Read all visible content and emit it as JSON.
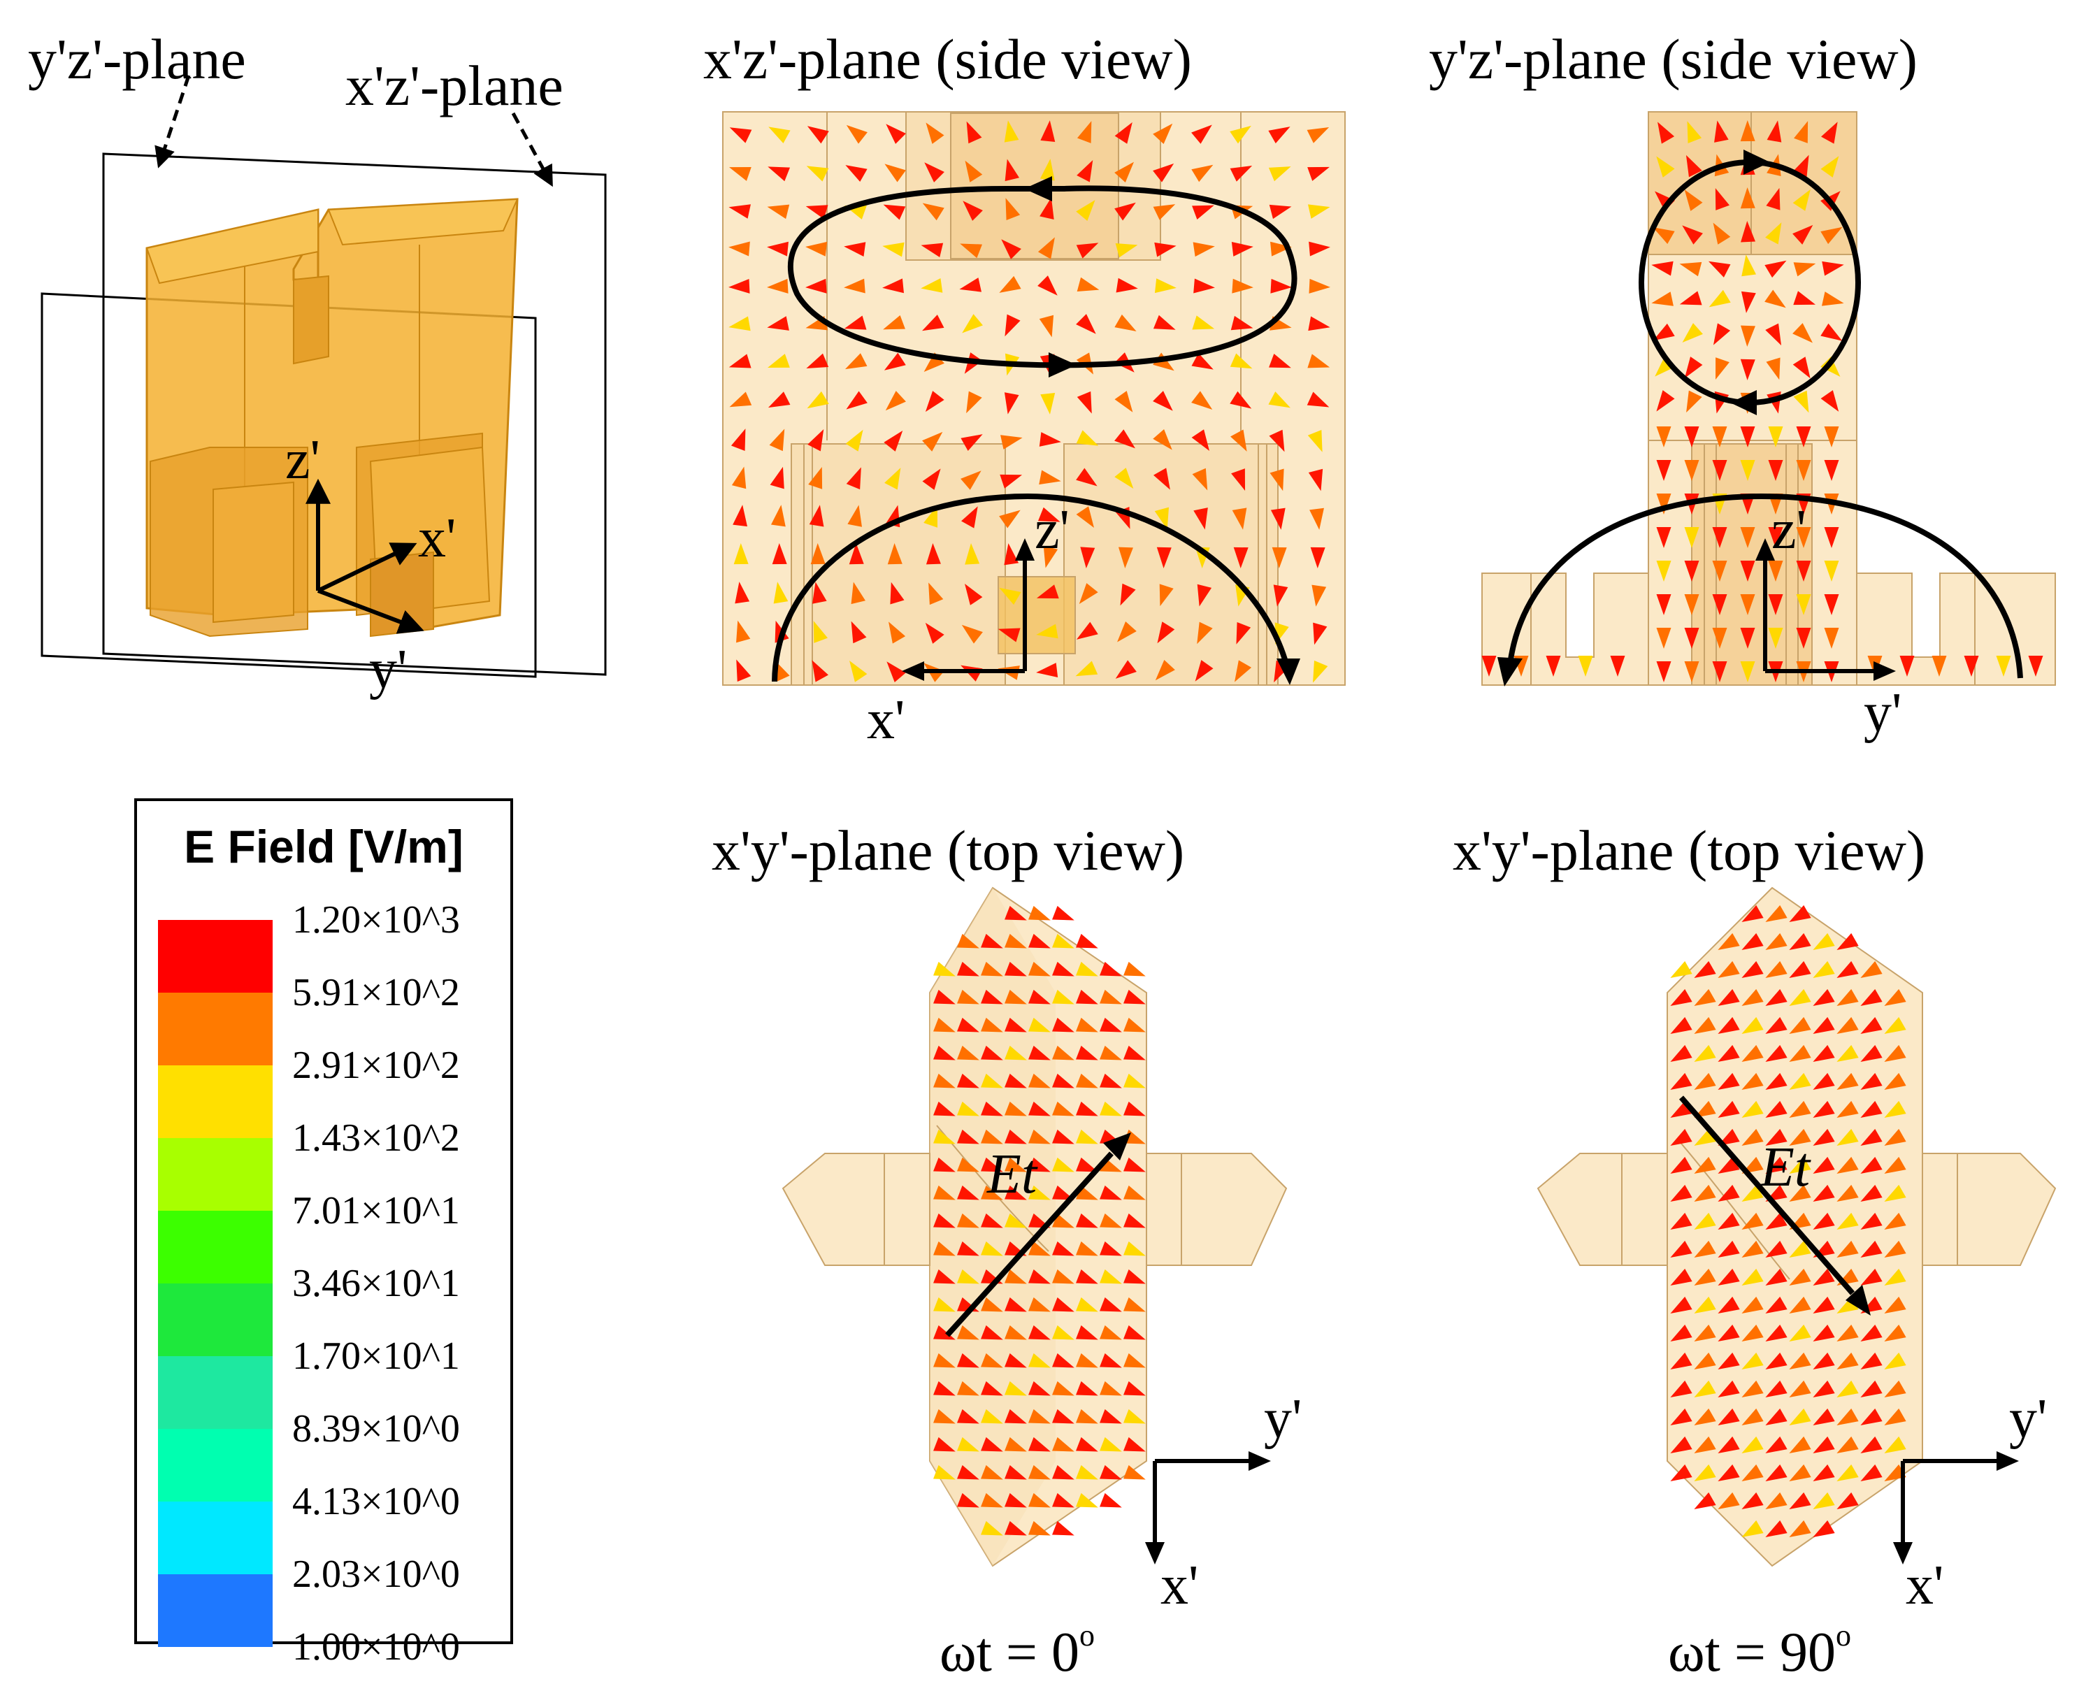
{
  "titles": {
    "iso_yz_plane": "y'z'-plane",
    "iso_xz_plane": "x'z'-plane",
    "xz_side": "x'z'-plane (side view)",
    "yz_side": "y'z'-plane (side view)",
    "xy_top_0": "x'y'-plane (top view)",
    "xy_top_90": "x'y'-plane (top view)"
  },
  "axes": {
    "iso": {
      "z": "z'",
      "x": "x'",
      "y": "y'"
    },
    "xz_side": {
      "z": "z'",
      "x": "x'"
    },
    "yz_side": {
      "z": "z'",
      "y": "y'"
    },
    "top0": {
      "y": "y'",
      "x": "x'"
    },
    "top90": {
      "y": "y'",
      "x": "x'"
    }
  },
  "vector_label": "Et",
  "phase": {
    "left": {
      "prefix": "ωt = 0",
      "sup": "o"
    },
    "right": {
      "prefix": "ωt = 90",
      "sup": "o"
    }
  },
  "legend": {
    "title": "E Field [V/m]",
    "ticks": [
      "1.20×10^3",
      "5.91×10^2",
      "2.91×10^2",
      "1.43×10^2",
      "7.01×10^1",
      "3.46×10^1",
      "1.70×10^1",
      "8.39×10^0",
      "4.13×10^0",
      "2.03×10^0",
      "1.00×10^0"
    ],
    "colors": [
      "#ff0000",
      "#ff7a00",
      "#ffe000",
      "#a8ff00",
      "#3cff00",
      "#1ee83c",
      "#1ee8a0",
      "#00ffb0",
      "#00e8ff",
      "#1e78ff",
      "#0000ff"
    ]
  },
  "colors": {
    "conductor": "#f5b030",
    "conductor_edge": "#c98510",
    "region_fill": "#fbe9c8",
    "region_edge": "#c8a36a",
    "arrow_red": "#ff1500",
    "arrow_orange": "#ff7000",
    "arrow_yellow": "#ffd800",
    "arrow_green": "#7ee81a"
  }
}
